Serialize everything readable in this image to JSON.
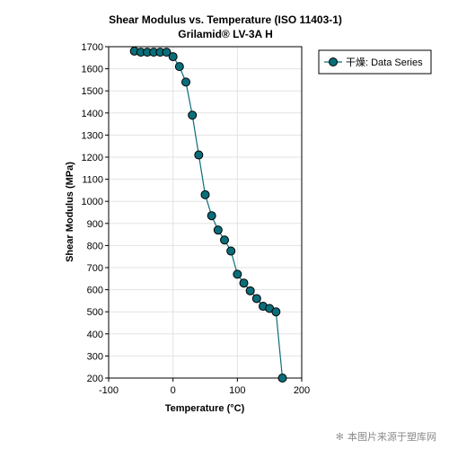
{
  "chart_data": {
    "type": "line",
    "title": "Shear Modulus vs. Temperature (ISO 11403-1)",
    "subtitle": "Grilamid® LV-3A H",
    "xlabel": "Temperature (°C)",
    "ylabel": "Shear Modulus (MPa)",
    "xlim": [
      -100,
      200
    ],
    "ylim": [
      200,
      1700
    ],
    "xticks": [
      -100,
      0,
      100,
      200
    ],
    "yticks": [
      200,
      300,
      400,
      500,
      600,
      700,
      800,
      900,
      1000,
      1100,
      1200,
      1300,
      1400,
      1500,
      1600,
      1700
    ],
    "grid": true,
    "legend_position": "top-right",
    "series": [
      {
        "name": "干燥: Data Series",
        "color": "#0a6e7a",
        "marker_color": "#0a6e7a",
        "marker_edge": "#000000",
        "marker": "circle",
        "x": [
          -60,
          -50,
          -40,
          -30,
          -20,
          -10,
          0,
          10,
          20,
          30,
          40,
          50,
          60,
          70,
          80,
          90,
          100,
          110,
          120,
          130,
          140,
          150,
          160,
          170
        ],
        "y": [
          1680,
          1675,
          1675,
          1675,
          1675,
          1675,
          1655,
          1610,
          1540,
          1390,
          1210,
          1030,
          935,
          870,
          825,
          775,
          670,
          630,
          595,
          560,
          525,
          515,
          500,
          200
        ]
      }
    ]
  },
  "watermark": {
    "icon": "asterisk-icon",
    "glyph": "✻",
    "text": "本图片来源于塑库网"
  }
}
